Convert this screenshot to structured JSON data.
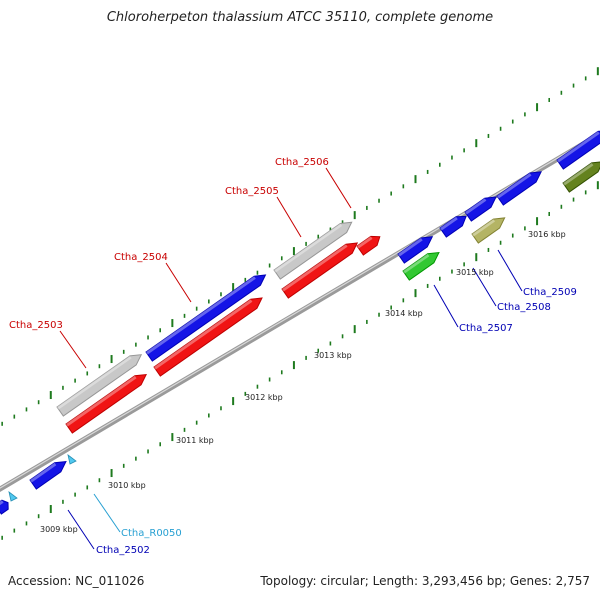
{
  "title": "Chloroherpeton thalassium ATCC 35110, complete genome",
  "footer": {
    "accession": "Accession: NC_011026",
    "summary": "Topology: circular; Length: 3,293,456 bp; Genes: 2,757"
  },
  "colors": {
    "backbone": "#888888",
    "tick": "#1e7a1e",
    "blue_gene": "#1414e6",
    "red_gene": "#f01414",
    "grey_gene": "#c8c8c8",
    "green_gene": "#32c832",
    "khaki_gene": "#b4b464",
    "olive_gene": "#64821e",
    "rna_gene": "#50c8f0",
    "label_red": "#c80000",
    "label_blue": "#0000b4",
    "label_cyan": "#28a0d2"
  },
  "scale": {
    "unit": "kbp",
    "ticks": [
      {
        "label": "3009 kbp"
      },
      {
        "label": "3010 kbp"
      },
      {
        "label": "3011 kbp"
      },
      {
        "label": "3012 kbp"
      },
      {
        "label": "3013 kbp"
      },
      {
        "label": "3014 kbp"
      },
      {
        "label": "3015 kbp"
      },
      {
        "label": "3016 kbp"
      }
    ]
  },
  "gene_labels": [
    {
      "text": "Ctha_2503",
      "color_key": "label_red"
    },
    {
      "text": "Ctha_2504",
      "color_key": "label_red"
    },
    {
      "text": "Ctha_2505",
      "color_key": "label_red"
    },
    {
      "text": "Ctha_2506",
      "color_key": "label_red"
    },
    {
      "text": "Ctha_2502",
      "color_key": "label_blue"
    },
    {
      "text": "Ctha_R0050",
      "color_key": "label_cyan"
    },
    {
      "text": "Ctha_2507",
      "color_key": "label_blue"
    },
    {
      "text": "Ctha_2508",
      "color_key": "label_blue"
    },
    {
      "text": "Ctha_2509",
      "color_key": "label_blue"
    }
  ]
}
